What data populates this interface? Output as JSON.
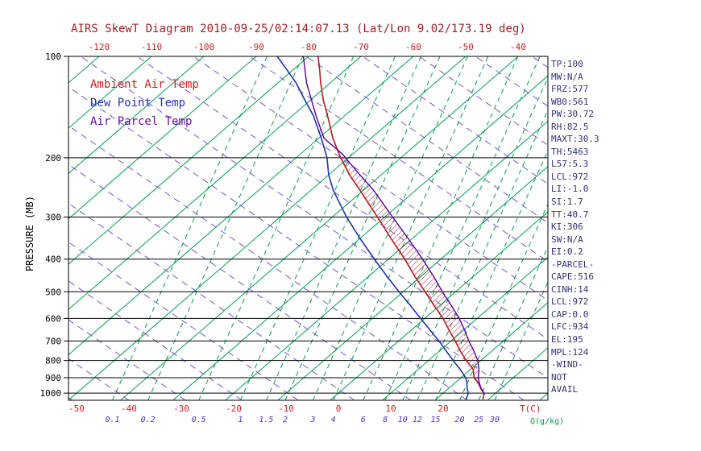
{
  "title": "AIRS SkewT Diagram 2010-09-25/02:14:07.13 (Lat/Lon 9.02/173.19 deg)",
  "colors": {
    "title": "#a02020",
    "axis_red": "#cc2020",
    "black": "#000000",
    "isotherm_green": "#00a050",
    "mixing_green": "#00a050",
    "dry_adiabat_violet": "#7755cc",
    "mixing_label_violet": "#5533bb",
    "ambient_red": "#b01c20",
    "dewpoint_blue": "#2233aa",
    "parcel_purple": "#5d00a0",
    "hatch_red": "#aa2233",
    "stats_navy": "#333377"
  },
  "legend": [
    {
      "label": "Ambient Air Temp",
      "color": "#cc2020"
    },
    {
      "label": "Dew Point Temp",
      "color": "#2233bb"
    },
    {
      "label": "Air Parcel Temp",
      "color": "#6a0dad"
    }
  ],
  "axes": {
    "pressure_label": "PRESSURE (MB)",
    "pressure_ticks": [
      100,
      200,
      300,
      400,
      500,
      600,
      700,
      800,
      900,
      1000
    ],
    "top_temp_ticks": [
      -120,
      -110,
      -100,
      -90,
      -80,
      -70,
      -60,
      -50,
      -40
    ],
    "bottom_temp_ticks": [
      -50,
      -40,
      -30,
      -20,
      -10,
      0,
      10,
      20
    ],
    "temp_unit_label": "T(C)",
    "mixing_ratio_ticks": [
      0.1,
      0.2,
      0.5,
      1,
      1.5,
      2,
      3,
      4,
      6,
      8,
      10,
      12,
      15,
      20,
      25,
      30
    ],
    "mixing_unit_label": "Q(g/kg)"
  },
  "chart_data": {
    "type": "skewt",
    "title": "AIRS SkewT Diagram 2010-09-25/02:14:07.13 (Lat/Lon 9.02/173.19 deg)",
    "pressure_axis_range_mb": [
      100,
      1050
    ],
    "ambient_temp_c_by_mb": [
      [
        1045,
        29.0
      ],
      [
        1000,
        27.8
      ],
      [
        970,
        26.2
      ],
      [
        950,
        25.3
      ],
      [
        925,
        24.0
      ],
      [
        900,
        22.5
      ],
      [
        850,
        20.5
      ],
      [
        800,
        17.2
      ],
      [
        750,
        14.0
      ],
      [
        700,
        10.8
      ],
      [
        650,
        7.2
      ],
      [
        600,
        3.5
      ],
      [
        550,
        -1.0
      ],
      [
        500,
        -5.8
      ],
      [
        450,
        -11.2
      ],
      [
        400,
        -16.9
      ],
      [
        350,
        -23.7
      ],
      [
        300,
        -31.4
      ],
      [
        250,
        -40.6
      ],
      [
        225,
        -46.0
      ],
      [
        200,
        -51.5
      ],
      [
        175,
        -57.3
      ],
      [
        150,
        -63.3
      ],
      [
        135,
        -67.5
      ],
      [
        120,
        -71.8
      ],
      [
        110,
        -74.8
      ],
      [
        100,
        -78.2
      ]
    ],
    "dew_point_c_by_mb": [
      [
        1045,
        25.8
      ],
      [
        1000,
        24.8
      ],
      [
        970,
        23.6
      ],
      [
        950,
        22.9
      ],
      [
        925,
        22.0
      ],
      [
        900,
        20.9
      ],
      [
        850,
        18.0
      ],
      [
        800,
        14.7
      ],
      [
        750,
        11.3
      ],
      [
        700,
        7.7
      ],
      [
        650,
        3.6
      ],
      [
        600,
        -0.8
      ],
      [
        550,
        -5.5
      ],
      [
        500,
        -10.8
      ],
      [
        450,
        -16.5
      ],
      [
        400,
        -22.7
      ],
      [
        350,
        -29.6
      ],
      [
        300,
        -37.3
      ],
      [
        250,
        -45.7
      ],
      [
        225,
        -50.0
      ],
      [
        200,
        -54.1
      ],
      [
        175,
        -59.5
      ],
      [
        150,
        -66.0
      ],
      [
        135,
        -71.0
      ],
      [
        120,
        -76.5
      ],
      [
        110,
        -81.0
      ],
      [
        100,
        -86.0
      ]
    ],
    "parcel_temp_c_by_mb": [
      [
        1010,
        28.2
      ],
      [
        1000,
        27.8
      ],
      [
        972,
        26.4
      ],
      [
        950,
        25.4
      ],
      [
        934,
        24.7
      ],
      [
        900,
        23.3
      ],
      [
        850,
        21.6
      ],
      [
        800,
        19.4
      ],
      [
        750,
        16.6
      ],
      [
        700,
        13.4
      ],
      [
        650,
        10.2
      ],
      [
        600,
        6.6
      ],
      [
        550,
        2.3
      ],
      [
        500,
        -2.5
      ],
      [
        450,
        -7.6
      ],
      [
        400,
        -13.5
      ],
      [
        350,
        -20.4
      ],
      [
        300,
        -28.5
      ],
      [
        250,
        -38.0
      ],
      [
        225,
        -44.0
      ],
      [
        200,
        -50.6
      ],
      [
        195,
        -52.0
      ],
      [
        175,
        -59.0
      ],
      [
        150,
        -65.5
      ],
      [
        120,
        -74.5
      ],
      [
        100,
        -81.0
      ]
    ],
    "cape_hatch_region_mb": {
      "from": 930,
      "to": 197
    }
  },
  "stats": [
    "TP:100",
    "MW:N/A",
    "FRZ:577",
    "WB0:561",
    "PW:30.72",
    "RH:82.5",
    "MAXT:30.3",
    "TH:5463",
    "L57:5.3",
    "LCL:972",
    "LI:-1.0",
    "SI:1.7",
    "TT:40.7",
    "KI:306",
    "SW:N/A",
    "EI:0.2",
    "-PARCEL-",
    "CAPE:516",
    "CINH:14",
    "LCL:972",
    "CAP:0.0",
    "LFC:934",
    "EL:195",
    "MPL:124",
    "-WIND-",
    "NOT",
    "AVAIL"
  ]
}
